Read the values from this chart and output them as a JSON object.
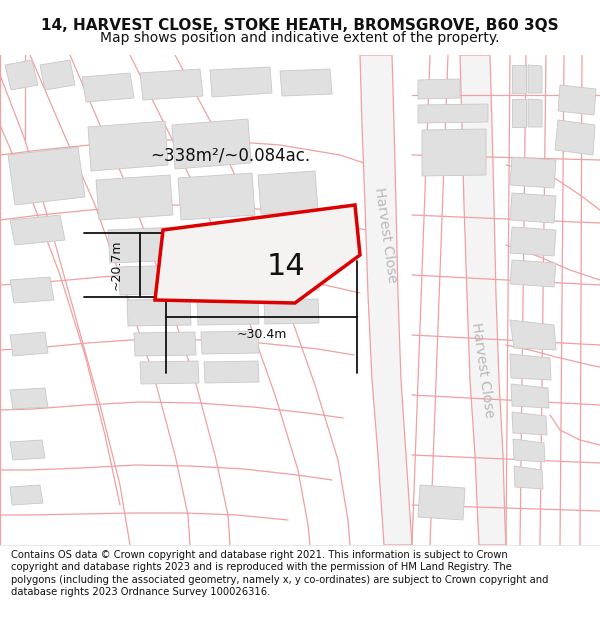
{
  "title_line1": "14, HARVEST CLOSE, STOKE HEATH, BROMSGROVE, B60 3QS",
  "title_line2": "Map shows position and indicative extent of the property.",
  "area_label": "~338m²/~0.084ac.",
  "plot_number": "14",
  "dim_vertical": "~20.7m",
  "dim_horizontal": "~30.4m",
  "road_label": "Harvest Close",
  "footer_text": "Contains OS data © Crown copyright and database right 2021. This information is subject to Crown copyright and database rights 2023 and is reproduced with the permission of HM Land Registry. The polygons (including the associated geometry, namely x, y co-ordinates) are subject to Crown copyright and database rights 2023 Ordnance Survey 100026316.",
  "bg_color": "#ffffff",
  "map_bg": "#f8f8f8",
  "building_color": "#e0e0e0",
  "building_edge": "#c8c8c8",
  "road_color": "#f0a0a0",
  "plot_edge_color": "#dd0000",
  "plot_fill_color": "#f5f2f2",
  "annotation_color": "#111111",
  "road_text_color": "#b0b0b0",
  "title_fontsize": 11,
  "subtitle_fontsize": 10,
  "footer_fontsize": 7.2,
  "plot_label_fontsize": 22,
  "area_fontsize": 12,
  "dim_fontsize": 9,
  "road_label_fontsize": 10
}
